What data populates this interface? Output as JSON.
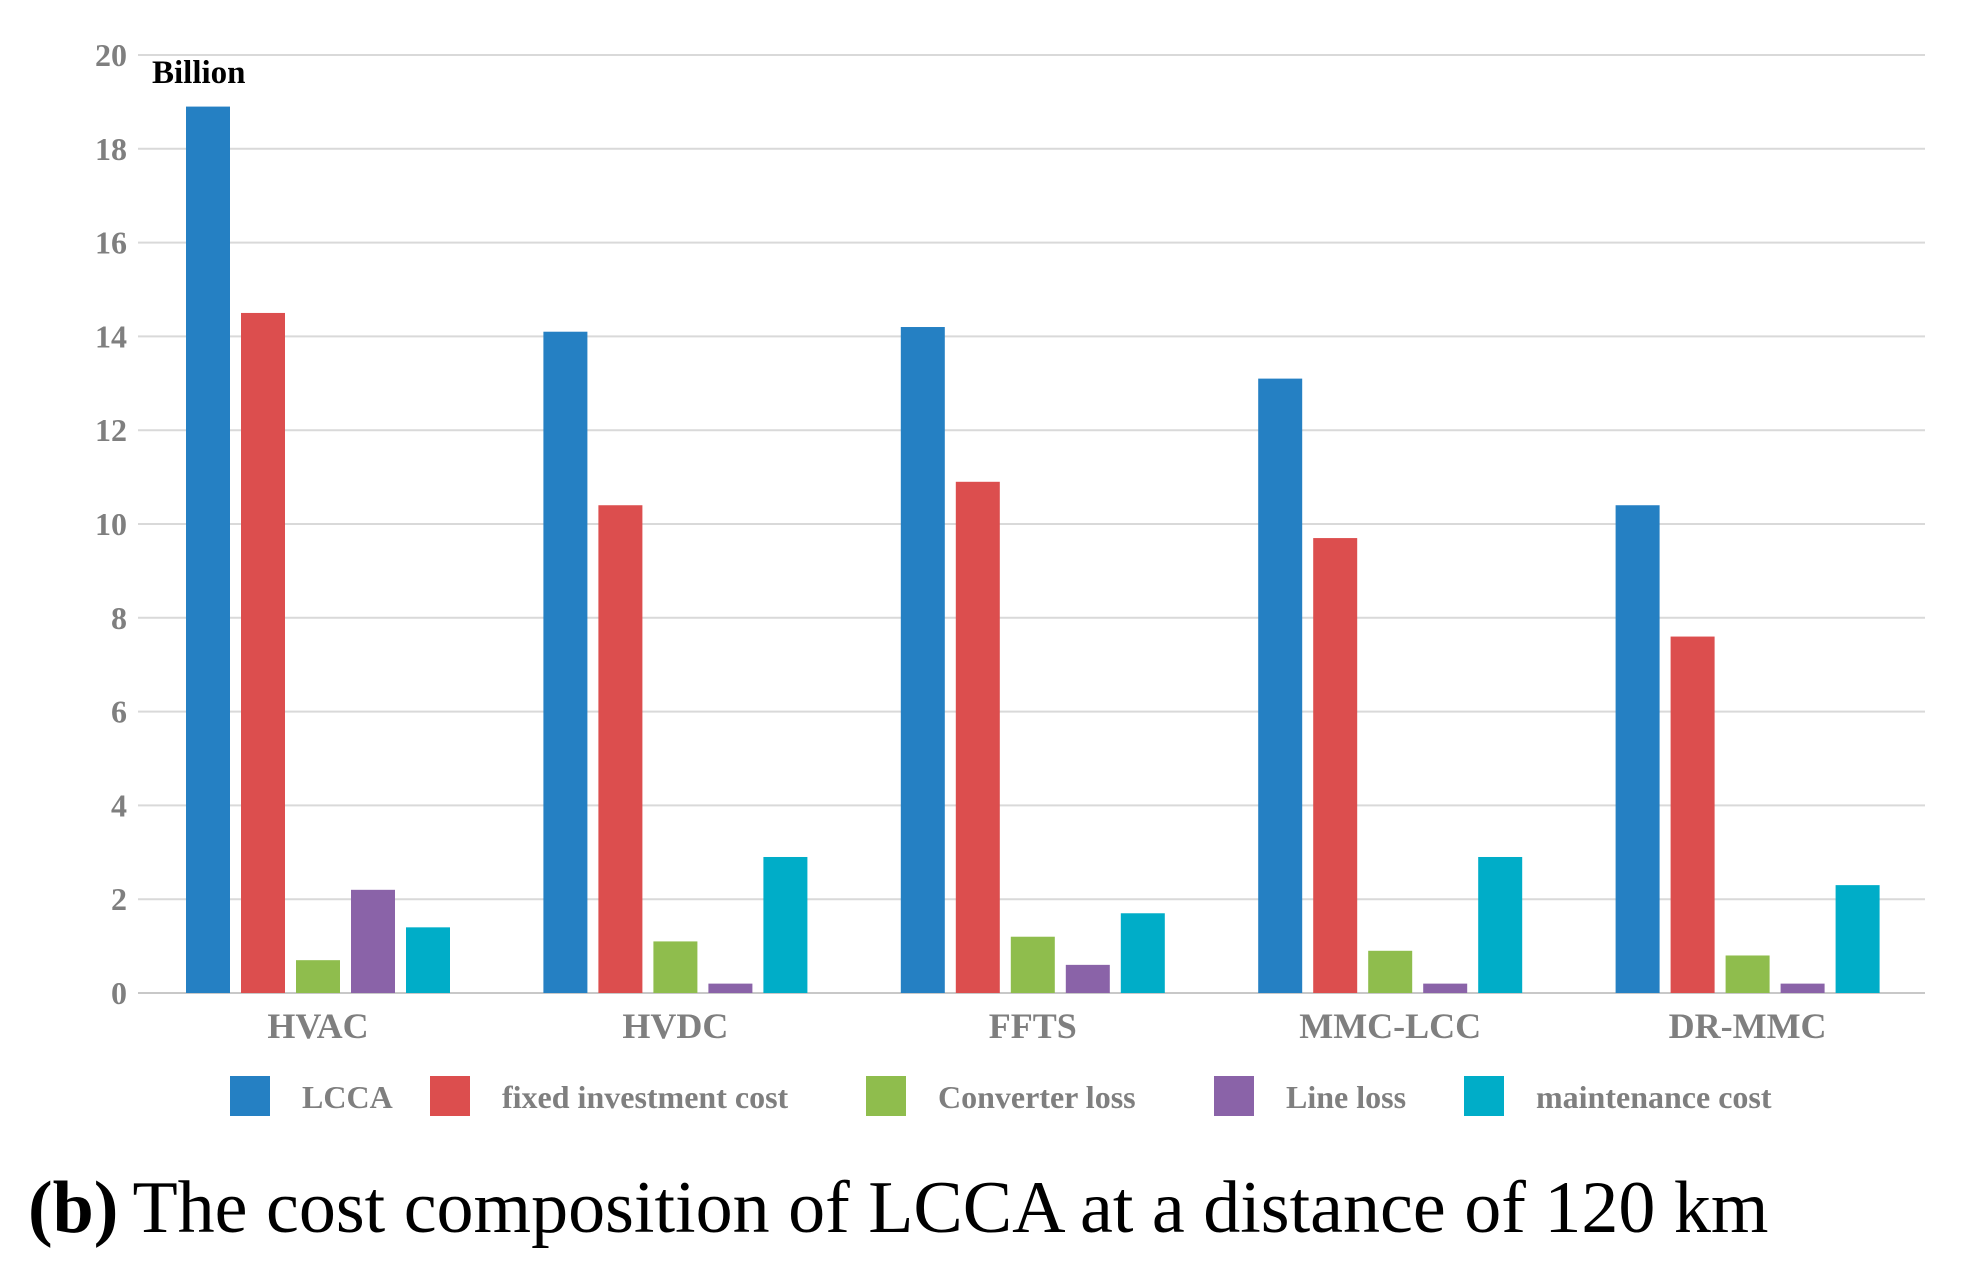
{
  "chart_data": {
    "type": "bar",
    "unit_label": "Billion",
    "categories": [
      "HVAC",
      "HVDC",
      "FFTS",
      "MMC-LCC",
      "DR-MMC"
    ],
    "ylim": [
      0,
      20
    ],
    "yticks": [
      "0",
      "2",
      "4",
      "6",
      "8",
      "10",
      "12",
      "14",
      "16",
      "18",
      "20"
    ],
    "grid": true,
    "legend_position": "bottom",
    "series": [
      {
        "name": "LCCA",
        "color": "#2580c3",
        "values": [
          18.9,
          14.1,
          14.2,
          13.1,
          10.4
        ]
      },
      {
        "name": "fixed investment cost",
        "color": "#dc4e4e",
        "values": [
          14.5,
          10.4,
          10.9,
          9.7,
          7.6
        ]
      },
      {
        "name": "Converter loss",
        "color": "#8fbd4d",
        "values": [
          0.7,
          1.1,
          1.2,
          0.9,
          0.8
        ]
      },
      {
        "name": "Line loss",
        "color": "#8a63a8",
        "values": [
          2.2,
          0.2,
          0.6,
          0.2,
          0.2
        ]
      },
      {
        "name": "maintenance cost",
        "color": "#00adc8",
        "values": [
          1.4,
          2.9,
          1.7,
          2.9,
          2.3
        ]
      }
    ],
    "caption_letter": "(b)",
    "caption_text": "The cost composition of LCCA at a distance of 120 km"
  }
}
